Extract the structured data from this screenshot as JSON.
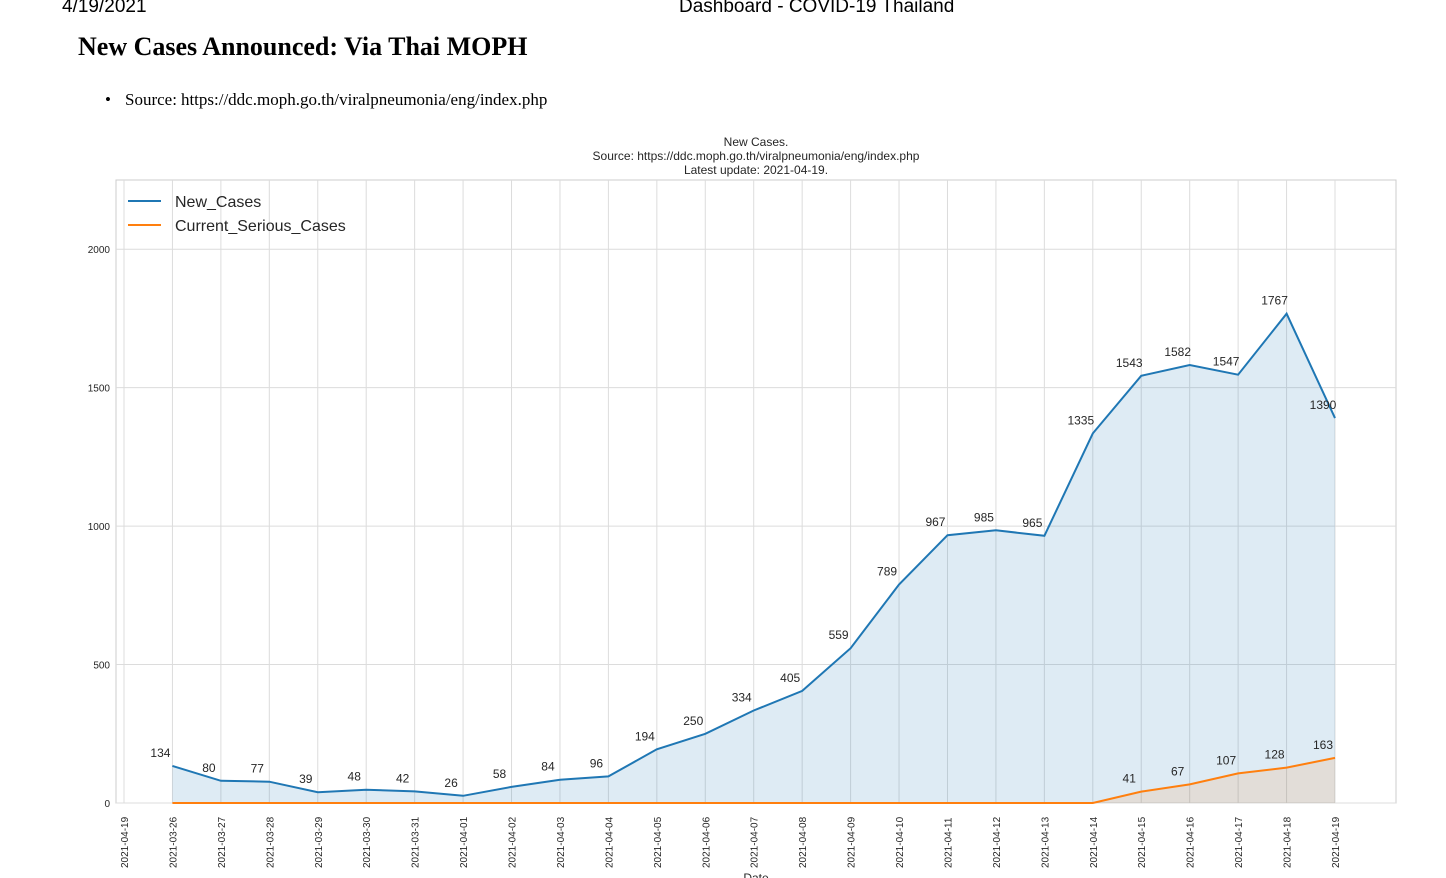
{
  "header": {
    "date": "4/19/2021",
    "title": "Dashboard - COVID-19 Thailand"
  },
  "page": {
    "heading": "New Cases Announced: Via Thai MOPH",
    "source_prefix": "Source:",
    "source_url": "https://ddc.moph.go.th/viralpneumonia/eng/index.php"
  },
  "colors": {
    "new_cases": "#1f77b4",
    "serious": "#ff7f0e"
  },
  "chart_data": {
    "type": "area",
    "title": [
      "New Cases.",
      "Source: https://ddc.moph.go.th/viralpneumonia/eng/index.php",
      "Latest update: 2021-04-19."
    ],
    "xlabel": "Date",
    "ylabel": "",
    "ylim": [
      0,
      2250
    ],
    "y_ticks": [
      0,
      500,
      1000,
      1500,
      2000
    ],
    "x_ticks": [
      "2021-04-19",
      "2021-03-26",
      "2021-03-27",
      "2021-03-28",
      "2021-03-29",
      "2021-03-30",
      "2021-03-31",
      "2021-04-01",
      "2021-04-02",
      "2021-04-03",
      "2021-04-04",
      "2021-04-05",
      "2021-04-06",
      "2021-04-07",
      "2021-04-08",
      "2021-04-09",
      "2021-04-10",
      "2021-04-11",
      "2021-04-12",
      "2021-04-13",
      "2021-04-14",
      "2021-04-15",
      "2021-04-16",
      "2021-04-17",
      "2021-04-18",
      "2021-04-19"
    ],
    "grid": true,
    "legend_position": "top-left",
    "series": [
      {
        "name": "New_Cases",
        "start_index": 1,
        "values": [
          134,
          80,
          77,
          39,
          48,
          42,
          26,
          58,
          84,
          96,
          194,
          250,
          334,
          405,
          559,
          789,
          967,
          985,
          965,
          1335,
          1543,
          1582,
          1547,
          1767,
          1390
        ]
      },
      {
        "name": "Current_Serious_Cases",
        "start_index": 1,
        "values": [
          0,
          0,
          0,
          0,
          0,
          0,
          0,
          0,
          0,
          0,
          0,
          0,
          0,
          0,
          0,
          0,
          0,
          0,
          0,
          0,
          41,
          67,
          107,
          128,
          163
        ],
        "labeled_from_index": 20
      }
    ]
  }
}
